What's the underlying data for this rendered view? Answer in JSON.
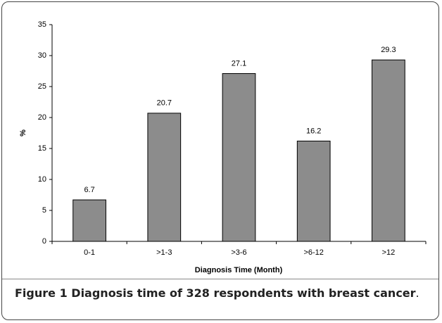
{
  "chart_data": {
    "type": "bar",
    "x_label": "Diagnosis Time (Month)",
    "y_label": "%",
    "categories": [
      "0-1",
      ">1-3",
      ">3-6",
      ">6-12",
      ">12"
    ],
    "values": [
      6.7,
      20.7,
      27.1,
      16.2,
      29.3
    ],
    "color": "#8c8c8c",
    "ylim": [
      0,
      35
    ],
    "yticks": [
      0,
      5,
      10,
      15,
      20,
      25,
      30,
      35
    ],
    "grid": false
  },
  "caption": {
    "label": "Figure 1",
    "text": "Diagnosis time of 328 respondents with breast cancer",
    "end": "."
  }
}
